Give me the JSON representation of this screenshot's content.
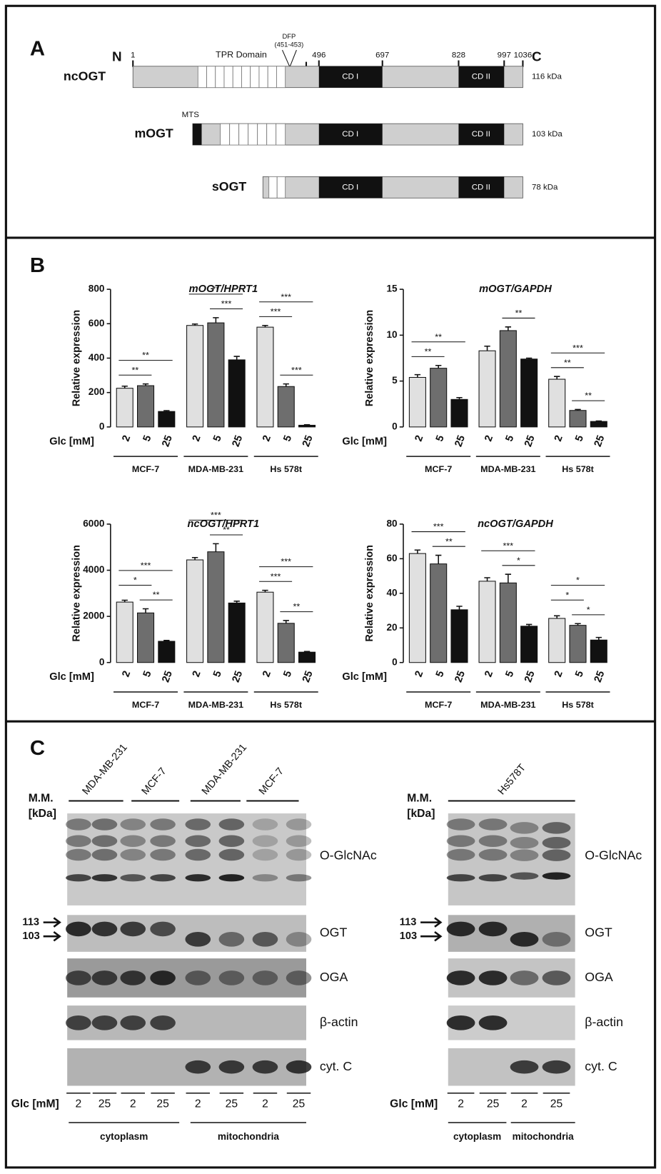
{
  "panel_a": {
    "label": "A",
    "n_terminus": "N",
    "c_terminus": "C",
    "positions": [
      1,
      496,
      697,
      828,
      997,
      1036
    ],
    "tpr": "TPR Domain",
    "dfp": [
      "DFP",
      "(451-453)"
    ],
    "cd1": "CD I",
    "cd2": "CD II",
    "isoforms": [
      {
        "name": "ncOGT",
        "mass": "116 kDa"
      },
      {
        "name": "mOGT",
        "mass": "103 kDa",
        "mts": "MTS"
      },
      {
        "name": "sOGT",
        "mass": "78 kDa"
      }
    ]
  },
  "panel_b": {
    "label": "B"
  },
  "chart_data": [
    {
      "type": "bar",
      "title": "mOGT/HPRT1",
      "y_label": "Relative expression",
      "x_label": "Glc [mM]",
      "categories": [
        "MCF-7",
        "MDA-MB-231",
        "Hs 578t"
      ],
      "series": [
        {
          "name": "2",
          "color": "#e0e0e0",
          "values": [
            225,
            590,
            580
          ],
          "errors": [
            12,
            8,
            10
          ]
        },
        {
          "name": "5",
          "color": "#6e6e6e",
          "values": [
            240,
            605,
            235
          ],
          "errors": [
            10,
            30,
            15
          ]
        },
        {
          "name": "25",
          "color": "#111111",
          "values": [
            90,
            390,
            10
          ],
          "errors": [
            5,
            20,
            3
          ]
        }
      ],
      "ylim": [
        0,
        800
      ],
      "yticks": [
        0,
        200,
        400,
        600,
        800
      ],
      "annotations": [
        {
          "text": "**",
          "category": 0,
          "from": 0,
          "to": 1
        },
        {
          "text": "**",
          "category": 0,
          "from": 0,
          "to": 2
        },
        {
          "text": "***",
          "category": 1,
          "from": 1,
          "to": 2
        },
        {
          "text": "**",
          "category": 1,
          "from": 0,
          "to": 2
        },
        {
          "text": "***",
          "category": 2,
          "from": 1,
          "to": 2
        },
        {
          "text": "***",
          "category": 2,
          "from": 0,
          "to": 1
        },
        {
          "text": "***",
          "category": 2,
          "from": 0,
          "to": 2
        }
      ]
    },
    {
      "type": "bar",
      "title": "mOGT/GAPDH",
      "y_label": "Relative expression",
      "x_label": "Glc [mM]",
      "categories": [
        "MCF-7",
        "MDA-MB-231",
        "Hs 578t"
      ],
      "series": [
        {
          "name": "2",
          "color": "#e0e0e0",
          "values": [
            5.4,
            8.3,
            5.2
          ],
          "errors": [
            0.3,
            0.5,
            0.3
          ]
        },
        {
          "name": "5",
          "color": "#6e6e6e",
          "values": [
            6.4,
            10.5,
            1.8
          ],
          "errors": [
            0.3,
            0.4,
            0.1
          ]
        },
        {
          "name": "25",
          "color": "#111111",
          "values": [
            3.0,
            7.4,
            0.6
          ],
          "errors": [
            0.2,
            0.1,
            0.05
          ]
        }
      ],
      "ylim": [
        0,
        15
      ],
      "yticks": [
        0,
        5,
        10,
        15
      ],
      "annotations": [
        {
          "text": "**",
          "category": 0,
          "from": 0,
          "to": 1
        },
        {
          "text": "**",
          "category": 0,
          "from": 0,
          "to": 2
        },
        {
          "text": "**",
          "category": 1,
          "from": 1,
          "to": 2
        },
        {
          "text": "**",
          "category": 2,
          "from": 1,
          "to": 2
        },
        {
          "text": "**",
          "category": 2,
          "from": 0,
          "to": 1
        },
        {
          "text": "***",
          "category": 2,
          "from": 0,
          "to": 2
        }
      ]
    },
    {
      "type": "bar",
      "title": "ncOGT/HPRT1",
      "y_label": "Relative expression",
      "x_label": "Glc [mM]",
      "categories": [
        "MCF-7",
        "MDA-MB-231",
        "Hs 578t"
      ],
      "series": [
        {
          "name": "2",
          "color": "#e0e0e0",
          "values": [
            2620,
            4450,
            3050
          ],
          "errors": [
            80,
            100,
            80
          ]
        },
        {
          "name": "5",
          "color": "#6e6e6e",
          "values": [
            2150,
            4800,
            1700
          ],
          "errors": [
            180,
            350,
            120
          ]
        },
        {
          "name": "25",
          "color": "#111111",
          "values": [
            920,
            2580,
            450
          ],
          "errors": [
            40,
            80,
            30
          ]
        }
      ],
      "ylim": [
        0,
        6000
      ],
      "yticks": [
        0,
        2000,
        4000,
        6000
      ],
      "annotations": [
        {
          "text": "**",
          "category": 0,
          "from": 1,
          "to": 2
        },
        {
          "text": "*",
          "category": 0,
          "from": 0,
          "to": 1
        },
        {
          "text": "***",
          "category": 0,
          "from": 0,
          "to": 2
        },
        {
          "text": "**",
          "category": 1,
          "from": 1,
          "to": 2
        },
        {
          "text": "***",
          "category": 1,
          "from": 0,
          "to": 2
        },
        {
          "text": "**",
          "category": 2,
          "from": 1,
          "to": 2
        },
        {
          "text": "***",
          "category": 2,
          "from": 0,
          "to": 1
        },
        {
          "text": "***",
          "category": 2,
          "from": 0,
          "to": 2
        }
      ]
    },
    {
      "type": "bar",
      "title": "ncOGT/GAPDH",
      "y_label": "Relative expression",
      "x_label": "Glc [mM]",
      "categories": [
        "MCF-7",
        "MDA-MB-231",
        "Hs 578t"
      ],
      "series": [
        {
          "name": "2",
          "color": "#e0e0e0",
          "values": [
            63,
            47,
            25.5
          ],
          "errors": [
            2,
            2,
            1.5
          ]
        },
        {
          "name": "5",
          "color": "#6e6e6e",
          "values": [
            57,
            46,
            21.5
          ],
          "errors": [
            5,
            5,
            1
          ]
        },
        {
          "name": "25",
          "color": "#111111",
          "values": [
            30.5,
            21,
            13
          ],
          "errors": [
            2,
            1,
            1.5
          ]
        }
      ],
      "ylim": [
        0,
        80
      ],
      "yticks": [
        0,
        20,
        40,
        60,
        80
      ],
      "annotations": [
        {
          "text": "**",
          "category": 0,
          "from": 1,
          "to": 2
        },
        {
          "text": "***",
          "category": 0,
          "from": 0,
          "to": 2
        },
        {
          "text": "*",
          "category": 1,
          "from": 1,
          "to": 2
        },
        {
          "text": "***",
          "category": 1,
          "from": 0,
          "to": 2
        },
        {
          "text": "*",
          "category": 2,
          "from": 1,
          "to": 2
        },
        {
          "text": "*",
          "category": 2,
          "from": 0,
          "to": 1
        },
        {
          "text": "*",
          "category": 2,
          "from": 0,
          "to": 2
        }
      ]
    }
  ],
  "panel_c": {
    "label": "C",
    "mm": "M.M.",
    "kda": "[kDa]",
    "markers": [
      "113",
      "103"
    ],
    "glc": "Glc [mM]",
    "blots": [
      "O-GlcNAc",
      "OGT",
      "OGA",
      "β-actin",
      "cyt. C"
    ],
    "left": {
      "cell_lines": [
        "MDA-MB-231",
        "MCF-7",
        "MDA-MB-231",
        "MCF-7"
      ],
      "lanes": [
        "2",
        "25",
        "2",
        "25",
        "2",
        "25",
        "2",
        "25"
      ],
      "fractions": [
        "cytoplasm",
        "mitochondria"
      ]
    },
    "right": {
      "cell_line": "Hs578T",
      "lanes": [
        "2",
        "25",
        "2",
        "25"
      ],
      "fractions": [
        "cytoplasm",
        "mitochondria"
      ]
    }
  }
}
